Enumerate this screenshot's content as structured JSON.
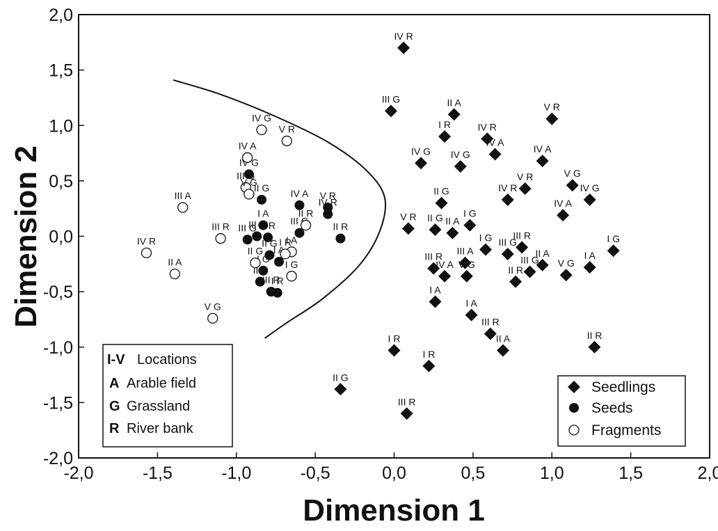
{
  "chart_data": {
    "type": "scatter",
    "xlabel": "Dimension 1",
    "ylabel": "Dimension 2",
    "xlim": [
      -2.0,
      2.0
    ],
    "ylim": [
      -2.0,
      2.0
    ],
    "x_ticks": [
      "-2,0",
      "-1,5",
      "-1,0",
      "-0,5",
      "0,0",
      "0,5",
      "1,0",
      "1,5",
      "2,0"
    ],
    "y_ticks": [
      "2,0",
      "1,5",
      "1,0",
      "0,5",
      "0,0",
      "-0,5",
      "-1,0",
      "-1,5",
      "-2,0"
    ],
    "grid": false,
    "boundary_curve": [
      [
        -1.4,
        1.41
      ],
      [
        -1.1,
        1.28
      ],
      [
        -0.75,
        1.08
      ],
      [
        -0.42,
        0.85
      ],
      [
        -0.18,
        0.6
      ],
      [
        -0.06,
        0.35
      ],
      [
        -0.09,
        0.05
      ],
      [
        -0.22,
        -0.26
      ],
      [
        -0.45,
        -0.56
      ],
      [
        -0.68,
        -0.78
      ],
      [
        -0.82,
        -0.92
      ]
    ],
    "key_box": [
      {
        "code": "I-V",
        "text": "Locations"
      },
      {
        "code": "A",
        "text": "Arable field"
      },
      {
        "code": "G",
        "text": "Grassland"
      },
      {
        "code": "R",
        "text": "River bank"
      }
    ],
    "legend": {
      "placement": "bottom-right",
      "entries": [
        {
          "name": "Seedlings",
          "marker": "diamond"
        },
        {
          "name": "Seeds",
          "marker": "filled-circle"
        },
        {
          "name": "Fragments",
          "marker": "open-circle"
        }
      ]
    },
    "series": [
      {
        "name": "Seedlings",
        "marker": "diamond",
        "points": [
          {
            "x": 0.06,
            "y": 1.7,
            "label": "IV R"
          },
          {
            "x": -0.02,
            "y": 1.13,
            "label": "III G"
          },
          {
            "x": 0.38,
            "y": 1.1,
            "label": "II A"
          },
          {
            "x": 0.32,
            "y": 0.9,
            "label": "I R"
          },
          {
            "x": 0.59,
            "y": 0.88,
            "label": "IV R"
          },
          {
            "x": 1.0,
            "y": 1.06,
            "label": "V R"
          },
          {
            "x": 0.64,
            "y": 0.74,
            "label": "IV A"
          },
          {
            "x": 0.17,
            "y": 0.66,
            "label": "IV G"
          },
          {
            "x": 0.42,
            "y": 0.63,
            "label": "IV G"
          },
          {
            "x": 0.94,
            "y": 0.68,
            "label": "IV A"
          },
          {
            "x": 1.13,
            "y": 0.46,
            "label": "V G"
          },
          {
            "x": 1.24,
            "y": 0.33,
            "label": "IV G"
          },
          {
            "x": 0.83,
            "y": 0.43,
            "label": "V R"
          },
          {
            "x": 0.72,
            "y": 0.33,
            "label": "IV R"
          },
          {
            "x": 1.07,
            "y": 0.19,
            "label": "IV A"
          },
          {
            "x": 0.3,
            "y": 0.3,
            "label": "II G"
          },
          {
            "x": 0.09,
            "y": 0.07,
            "label": "V R"
          },
          {
            "x": 0.26,
            "y": 0.06,
            "label": "II G"
          },
          {
            "x": 0.37,
            "y": 0.03,
            "label": "II A"
          },
          {
            "x": 0.48,
            "y": 0.1,
            "label": "I G"
          },
          {
            "x": 0.58,
            "y": -0.12,
            "label": "I G"
          },
          {
            "x": 0.72,
            "y": -0.16,
            "label": "III G"
          },
          {
            "x": 0.81,
            "y": -0.1,
            "label": "III R"
          },
          {
            "x": 1.39,
            "y": -0.13,
            "label": "I G"
          },
          {
            "x": 0.45,
            "y": -0.24,
            "label": "III A"
          },
          {
            "x": 0.25,
            "y": -0.29,
            "label": "III R"
          },
          {
            "x": 0.32,
            "y": -0.36,
            "label": "IV A"
          },
          {
            "x": 0.46,
            "y": -0.36,
            "label": "V G"
          },
          {
            "x": 0.77,
            "y": -0.41,
            "label": "II R"
          },
          {
            "x": 0.86,
            "y": -0.32,
            "label": "III G"
          },
          {
            "x": 0.94,
            "y": -0.26,
            "label": "II A"
          },
          {
            "x": 1.09,
            "y": -0.35,
            "label": "V G"
          },
          {
            "x": 1.24,
            "y": -0.28,
            "label": "I A"
          },
          {
            "x": 0.26,
            "y": -0.59,
            "label": "I A"
          },
          {
            "x": 0.49,
            "y": -0.71,
            "label": "I A"
          },
          {
            "x": 0.61,
            "y": -0.88,
            "label": "III R"
          },
          {
            "x": 0.69,
            "y": -1.03,
            "label": "II A"
          },
          {
            "x": 1.27,
            "y": -1.0,
            "label": "II R"
          },
          {
            "x": 0.0,
            "y": -1.03,
            "label": "I R"
          },
          {
            "x": 0.22,
            "y": -1.17,
            "label": "I R"
          },
          {
            "x": -0.34,
            "y": -1.38,
            "label": "II G"
          },
          {
            "x": 0.08,
            "y": -1.6,
            "label": "III R"
          }
        ]
      },
      {
        "name": "Seeds",
        "marker": "filled-circle",
        "points": [
          {
            "x": -0.92,
            "y": 0.56,
            "label": "IV G"
          },
          {
            "x": -0.84,
            "y": 0.33,
            "label": "II G"
          },
          {
            "x": -0.6,
            "y": 0.28,
            "label": "IV A"
          },
          {
            "x": -0.42,
            "y": 0.26,
            "label": "V R"
          },
          {
            "x": -0.42,
            "y": 0.2,
            "label": "IV R"
          },
          {
            "x": -0.83,
            "y": 0.1,
            "label": "I A"
          },
          {
            "x": -0.6,
            "y": 0.03,
            "label": "III G"
          },
          {
            "x": -0.34,
            "y": -0.02,
            "label": "II R"
          },
          {
            "x": -0.93,
            "y": -0.03,
            "label": "III G"
          },
          {
            "x": -0.87,
            "y": 0.0,
            "label": "III A"
          },
          {
            "x": -0.8,
            "y": -0.01,
            "label": "II R"
          },
          {
            "x": -0.79,
            "y": -0.17,
            "label": "II G"
          },
          {
            "x": -0.73,
            "y": -0.23,
            "label": "I A"
          },
          {
            "x": -0.83,
            "y": -0.31,
            "label": "I G"
          },
          {
            "x": -0.85,
            "y": -0.41,
            "label": "II A"
          },
          {
            "x": -0.78,
            "y": -0.5,
            "label": "III R"
          },
          {
            "x": -0.74,
            "y": -0.51,
            "label": "I R"
          }
        ]
      },
      {
        "name": "Fragments",
        "marker": "open-circle",
        "points": [
          {
            "x": -0.84,
            "y": 0.96,
            "label": "IV G"
          },
          {
            "x": -0.68,
            "y": 0.86,
            "label": "V R"
          },
          {
            "x": -0.93,
            "y": 0.71,
            "label": "IV A"
          },
          {
            "x": -0.94,
            "y": 0.44,
            "label": "III G"
          },
          {
            "x": -0.92,
            "y": 0.38,
            "label": "V G"
          },
          {
            "x": -1.34,
            "y": 0.26,
            "label": "III A"
          },
          {
            "x": -0.56,
            "y": 0.1,
            "label": "II R"
          },
          {
            "x": -1.1,
            "y": -0.02,
            "label": "III R"
          },
          {
            "x": -1.57,
            "y": -0.15,
            "label": "IV R"
          },
          {
            "x": -0.65,
            "y": -0.14,
            "label": "I A"
          },
          {
            "x": -0.69,
            "y": -0.16,
            "label": "I R"
          },
          {
            "x": -0.88,
            "y": -0.24,
            "label": "II G"
          },
          {
            "x": -1.39,
            "y": -0.34,
            "label": "II A"
          },
          {
            "x": -0.65,
            "y": -0.36,
            "label": "I G"
          },
          {
            "x": -1.15,
            "y": -0.74,
            "label": "V G"
          }
        ]
      }
    ]
  }
}
